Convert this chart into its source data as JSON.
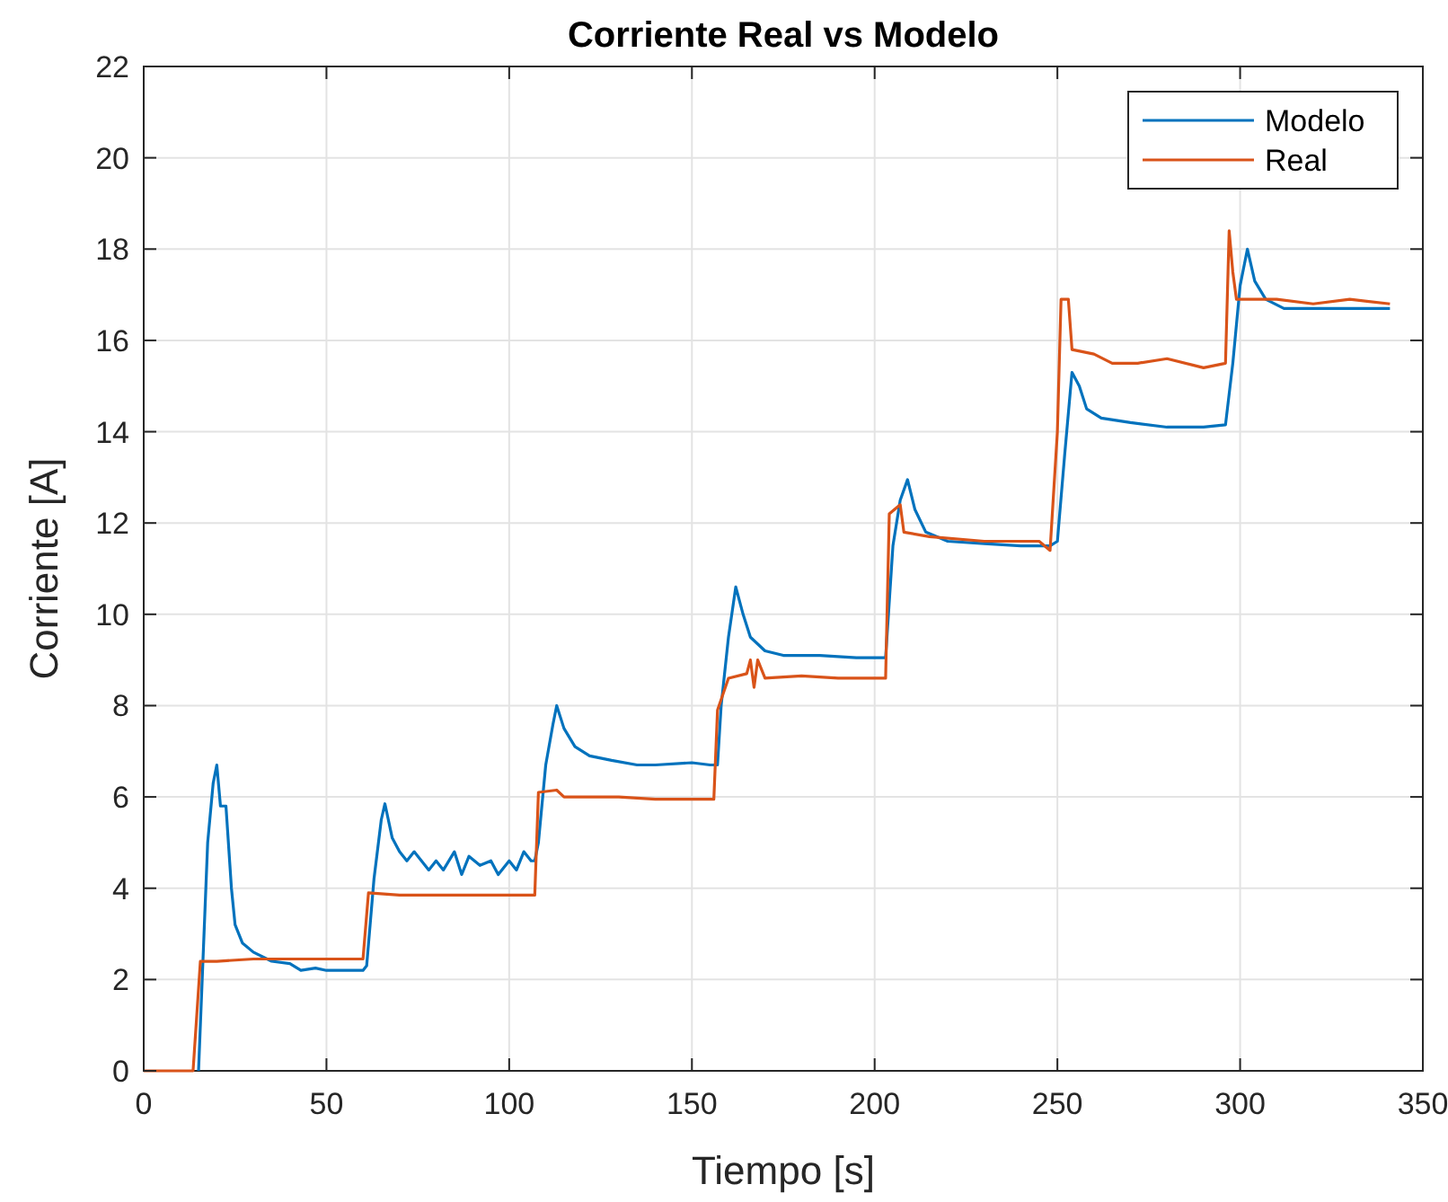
{
  "chart_data": {
    "type": "line",
    "title": "Corriente Real vs Modelo",
    "xlabel": "Tiempo [s]",
    "ylabel": "Corriente [A]",
    "xlim": [
      0,
      350
    ],
    "xticks": [
      0,
      50,
      100,
      150,
      200,
      250,
      300,
      350
    ],
    "ylim": [
      0,
      22
    ],
    "yticks": [
      0,
      2,
      4,
      6,
      8,
      10,
      12,
      14,
      16,
      18,
      20,
      22
    ],
    "grid": true,
    "legend": "top right",
    "series": [
      {
        "name": "Modelo",
        "color": "#0072bd",
        "x": [
          15,
          16,
          17.5,
          19,
          20,
          21,
          22.5,
          24,
          25,
          27,
          30,
          35,
          40,
          43,
          47,
          50,
          55,
          60,
          61,
          63,
          65,
          66,
          68,
          70,
          72,
          74,
          76,
          78,
          80,
          82,
          85,
          87,
          89,
          92,
          95,
          97,
          100,
          102,
          104,
          106,
          107,
          108,
          110,
          112,
          113,
          115,
          118,
          122,
          128,
          135,
          140,
          150,
          155,
          157,
          158,
          160,
          162,
          164,
          166,
          170,
          175,
          185,
          195,
          203,
          205,
          207,
          209,
          211,
          214,
          220,
          230,
          240,
          248,
          250,
          252,
          254,
          256,
          258,
          262,
          270,
          280,
          290,
          296,
          298,
          300,
          302,
          304,
          307,
          312,
          320,
          330,
          341
        ],
        "values": [
          0,
          2,
          5,
          6.3,
          6.7,
          5.8,
          5.8,
          4,
          3.2,
          2.8,
          2.6,
          2.4,
          2.35,
          2.2,
          2.25,
          2.2,
          2.2,
          2.2,
          2.3,
          4.2,
          5.5,
          5.85,
          5.1,
          4.8,
          4.6,
          4.8,
          4.6,
          4.4,
          4.6,
          4.4,
          4.8,
          4.3,
          4.7,
          4.5,
          4.6,
          4.3,
          4.6,
          4.4,
          4.8,
          4.6,
          4.6,
          5,
          6.7,
          7.6,
          8,
          7.5,
          7.1,
          6.9,
          6.8,
          6.7,
          6.7,
          6.75,
          6.7,
          6.7,
          8,
          9.5,
          10.6,
          10,
          9.5,
          9.2,
          9.1,
          9.1,
          9.05,
          9.05,
          11.5,
          12.5,
          12.95,
          12.3,
          11.8,
          11.6,
          11.55,
          11.5,
          11.5,
          11.6,
          13.5,
          15.3,
          15,
          14.5,
          14.3,
          14.2,
          14.1,
          14.1,
          14.15,
          15.5,
          17.2,
          18,
          17.3,
          16.9,
          16.7,
          16.7,
          16.7,
          16.7
        ]
      },
      {
        "name": "Real",
        "color": "#d95319",
        "x": [
          0,
          13.5,
          15.5,
          20,
          30,
          40,
          50,
          60,
          61.5,
          70,
          80,
          90,
          100,
          107,
          108,
          113,
          115,
          130,
          140,
          156,
          157,
          160,
          165,
          166,
          167,
          168,
          170,
          180,
          190,
          203,
          204,
          207,
          208,
          215,
          230,
          245,
          248,
          250,
          251,
          253,
          254,
          260,
          265,
          272,
          280,
          290,
          296,
          297,
          298,
          299,
          310,
          320,
          330,
          341
        ],
        "values": [
          0,
          0,
          2.4,
          2.4,
          2.45,
          2.45,
          2.45,
          2.45,
          3.9,
          3.85,
          3.85,
          3.85,
          3.85,
          3.85,
          6.1,
          6.15,
          6,
          6,
          5.95,
          5.95,
          7.9,
          8.6,
          8.7,
          9,
          8.4,
          9,
          8.6,
          8.65,
          8.6,
          8.6,
          12.2,
          12.4,
          11.8,
          11.7,
          11.6,
          11.6,
          11.4,
          14,
          16.9,
          16.9,
          15.8,
          15.7,
          15.5,
          15.5,
          15.6,
          15.4,
          15.5,
          18.4,
          17.5,
          16.9,
          16.9,
          16.8,
          16.9,
          16.8
        ]
      }
    ]
  }
}
